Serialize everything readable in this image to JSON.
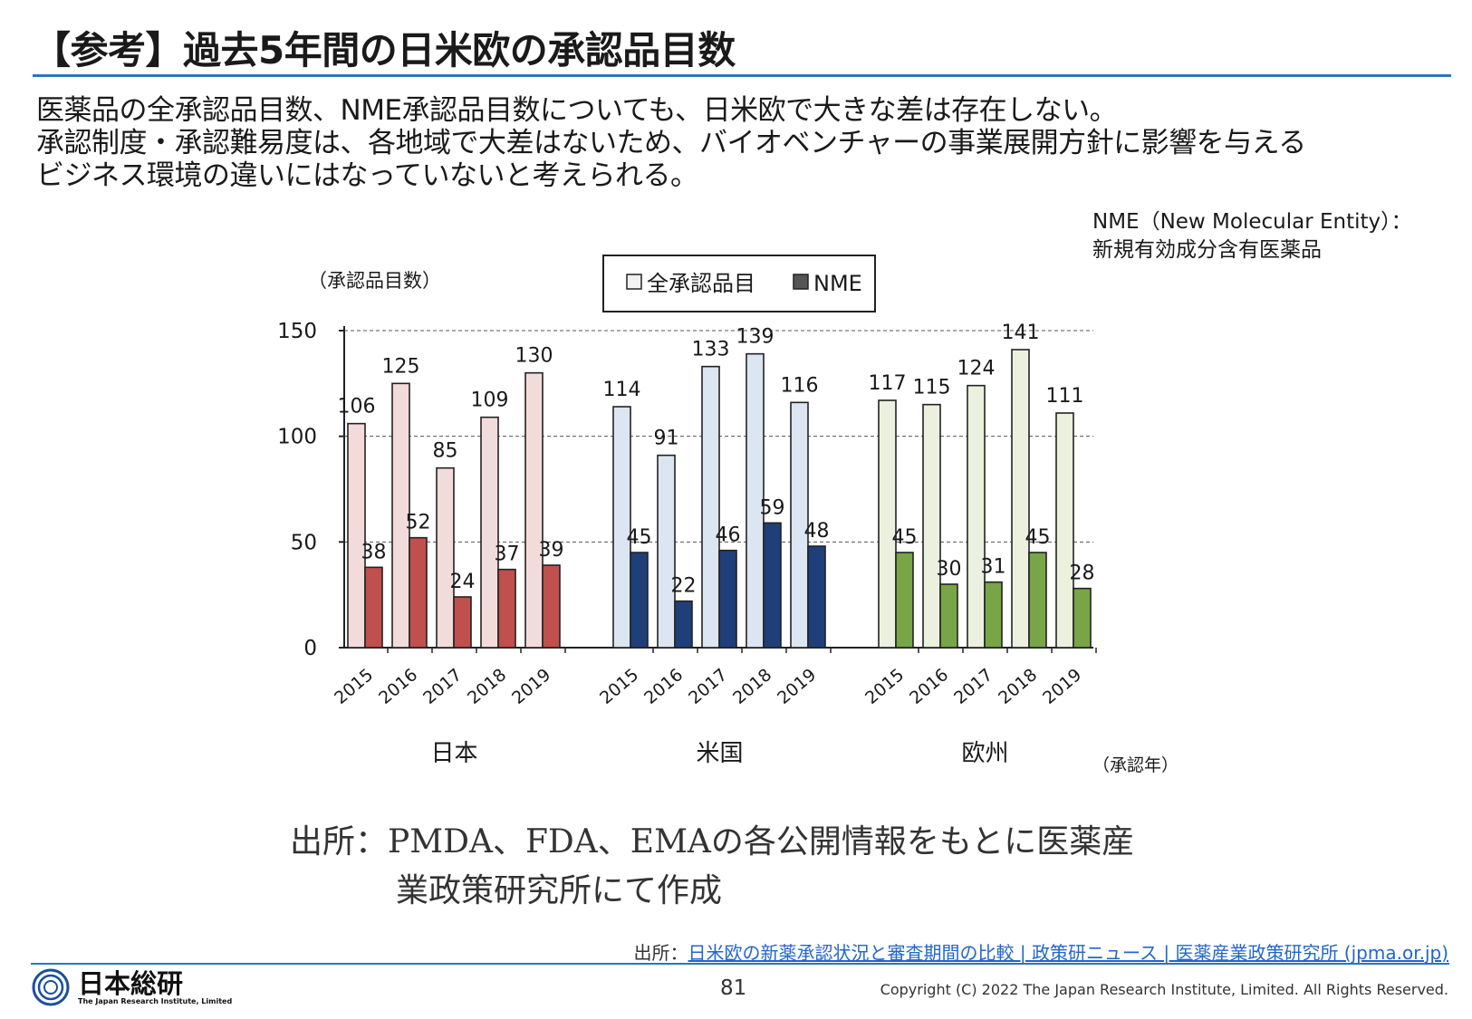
{
  "title": "【参考】過去5年間の日米欧の承認品目数",
  "body_lines": [
    "医薬品の全承認品目数、NME承認品目数についても、日米欧で大きな差は存在しない。",
    "承認制度・承認難易度は、各地域で大差はないため、バイオベンチャーの事業展開方針に影響を与える",
    "ビジネス環境の違いにはなっていないと考えられる。"
  ],
  "nme_note": [
    "NME（New Molecular Entity）：",
    "新規有効成分含有医薬品"
  ],
  "chart_data": {
    "type": "bar",
    "ylabel": "（承認品目数）",
    "xlabel": "（承認年）",
    "ylim": [
      0,
      150
    ],
    "yticks": [
      0,
      50,
      100,
      150
    ],
    "grid": "dashed horizontal at 50, 100, 150",
    "legend": {
      "placement": "top-center",
      "entries": [
        "全承認品目",
        "NME"
      ]
    },
    "groups": [
      {
        "name": "日本",
        "years": [
          "2015",
          "2016",
          "2017",
          "2018",
          "2019"
        ],
        "total": [
          106,
          125,
          85,
          109,
          130
        ],
        "nme": [
          38,
          52,
          24,
          37,
          39
        ],
        "colors": {
          "total": "#f2dcdb",
          "nme": "#c0504d"
        }
      },
      {
        "name": "米国",
        "years": [
          "2015",
          "2016",
          "2017",
          "2018",
          "2019"
        ],
        "total": [
          114,
          91,
          133,
          139,
          116
        ],
        "nme": [
          45,
          22,
          46,
          59,
          48
        ],
        "colors": {
          "total": "#dce6f2",
          "nme": "#1f3f7a"
        }
      },
      {
        "name": "欧州",
        "years": [
          "2015",
          "2016",
          "2017",
          "2018",
          "2019"
        ],
        "total": [
          117,
          115,
          124,
          141,
          111
        ],
        "nme": [
          45,
          30,
          31,
          45,
          28
        ],
        "colors": {
          "total": "#ebf1de",
          "nme": "#77a548"
        }
      }
    ]
  },
  "source_lines": [
    "出所：PMDA、FDA、EMAの各公開情報をもとに医薬産",
    "業政策研究所にて作成"
  ],
  "source_link": {
    "prefix": "出所：",
    "text": "日米欧の新薬承認状況と審査期間の比較 | 政策研ニュース | 医薬産業政策研究所 (jpma.or.jp)"
  },
  "footer": {
    "logo_main": "日本総研",
    "logo_sub": "The Japan Research Institute, Limited",
    "page_number": "81",
    "copyright": "Copyright (C) 2022 The Japan Research Institute, Limited. All Rights Reserved."
  },
  "colors": {
    "accent": "#2f74b5",
    "link": "#2266cc"
  }
}
